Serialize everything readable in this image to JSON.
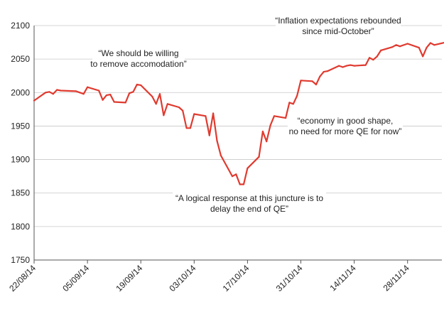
{
  "chart_data": {
    "type": "line",
    "title": "",
    "xlabel": "",
    "ylabel": "",
    "ylim": [
      1750,
      2100
    ],
    "y_ticks": [
      1750,
      1800,
      1850,
      1900,
      1950,
      2000,
      2050,
      2100
    ],
    "x_range": [
      "2014-08-22",
      "2014-12-07"
    ],
    "x_tick_labels": [
      {
        "date": "2014-08-22",
        "label": "22/08/14"
      },
      {
        "date": "2014-09-05",
        "label": "05/09/14"
      },
      {
        "date": "2014-09-19",
        "label": "19/09/14"
      },
      {
        "date": "2014-10-03",
        "label": "03/10/14"
      },
      {
        "date": "2014-10-17",
        "label": "17/10/14"
      },
      {
        "date": "2014-10-31",
        "label": "31/10/14"
      },
      {
        "date": "2014-11-14",
        "label": "14/11/14"
      },
      {
        "date": "2014-11-28",
        "label": "28/11/14"
      }
    ],
    "grid": "horizontal",
    "line_color": "#e03a2f",
    "series": [
      {
        "x": [
          "2014-08-22",
          "2014-08-25",
          "2014-08-26",
          "2014-08-27",
          "2014-08-28",
          "2014-08-29",
          "2014-09-02",
          "2014-09-03",
          "2014-09-04",
          "2014-09-05",
          "2014-09-08",
          "2014-09-09",
          "2014-09-10",
          "2014-09-11",
          "2014-09-12",
          "2014-09-15",
          "2014-09-16",
          "2014-09-17",
          "2014-09-18",
          "2014-09-19",
          "2014-09-22",
          "2014-09-23",
          "2014-09-24",
          "2014-09-25",
          "2014-09-26",
          "2014-09-29",
          "2014-09-30",
          "2014-10-01",
          "2014-10-02",
          "2014-10-03",
          "2014-10-06",
          "2014-10-07",
          "2014-10-08",
          "2014-10-09",
          "2014-10-10",
          "2014-10-13",
          "2014-10-14",
          "2014-10-15",
          "2014-10-16",
          "2014-10-17",
          "2014-10-20",
          "2014-10-21",
          "2014-10-22",
          "2014-10-23",
          "2014-10-24",
          "2014-10-27",
          "2014-10-28",
          "2014-10-29",
          "2014-10-30",
          "2014-10-31",
          "2014-11-03",
          "2014-11-04",
          "2014-11-05",
          "2014-11-06",
          "2014-11-07",
          "2014-11-10",
          "2014-11-11",
          "2014-11-12",
          "2014-11-13",
          "2014-11-14",
          "2014-11-17",
          "2014-11-18",
          "2014-11-19",
          "2014-11-20",
          "2014-11-21",
          "2014-11-24",
          "2014-11-25",
          "2014-11-26",
          "2014-11-28",
          "2014-12-01",
          "2014-12-02",
          "2014-12-03",
          "2014-12-04",
          "2014-12-05",
          "2014-12-08"
        ],
        "values": [
          1988,
          2000,
          2001,
          1998,
          2004,
          2003,
          2002,
          2000,
          1998,
          2008,
          2003,
          1989,
          1996,
          1997,
          1986,
          1985,
          1999,
          2001,
          2012,
          2011,
          1994,
          1983,
          1998,
          1966,
          1983,
          1978,
          1973,
          1947,
          1947,
          1968,
          1965,
          1936,
          1969,
          1928,
          1906,
          1875,
          1878,
          1863,
          1863,
          1887,
          1904,
          1942,
          1927,
          1951,
          1965,
          1962,
          1985,
          1983,
          1995,
          2018,
          2017,
          2012,
          2024,
          2031,
          2032,
          2040,
          2038,
          2040,
          2041,
          2040,
          2041,
          2052,
          2049,
          2054,
          2063,
          2068,
          2071,
          2069,
          2073,
          2067,
          2054,
          2067,
          2074,
          2071,
          2075
        ]
      }
    ],
    "annotations": [
      {
        "lines": [
          "“We should be willing",
          "to remove accomodation”"
        ]
      },
      {
        "lines": [
          "“A logical response at this juncture is to",
          "delay the end of QE”"
        ]
      },
      {
        "lines": [
          "“economy in good shape,",
          "no need for more QE for now”"
        ]
      },
      {
        "lines": [
          "“Inflation expectations rebounded",
          "since mid-October”"
        ]
      }
    ]
  }
}
